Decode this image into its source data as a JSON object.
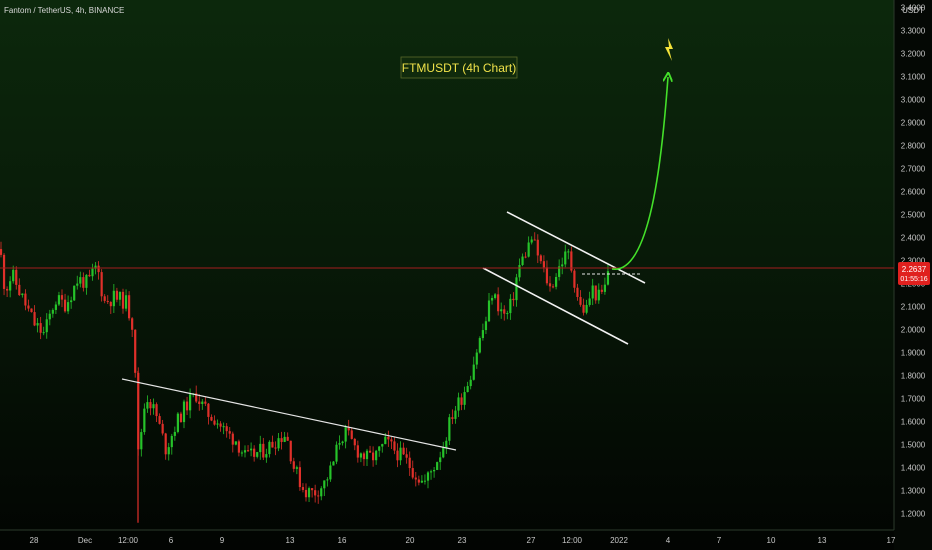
{
  "legend": {
    "text": "Fantom / TetherUS, 4h, BINANCE"
  },
  "chart_data": {
    "type": "candlestick",
    "symbol": "FTMUSDT",
    "annotation": "FTMUSDT (4h Chart)",
    "quote_currency": "USDT",
    "y_ticks": [
      "3.4000",
      "3.3000",
      "3.2000",
      "3.1000",
      "3.0000",
      "2.9000",
      "2.8000",
      "2.7000",
      "2.6000",
      "2.5000",
      "2.4000",
      "2.3000",
      "2.2000",
      "2.1000",
      "2.0000",
      "1.9000",
      "1.8000",
      "1.7000",
      "1.6000",
      "1.5000",
      "1.4000",
      "1.3000",
      "1.2000"
    ],
    "ylim": [
      1.15,
      3.42
    ],
    "x_ticks": [
      "28",
      "Dec",
      "12:00",
      "6",
      "9",
      "13",
      "16",
      "20",
      "23",
      "27",
      "12:00",
      "2022",
      "4",
      "7",
      "10",
      "13",
      "17"
    ],
    "last_price": {
      "label": "2.2637",
      "value": 2.2637,
      "countdown": "01:55:16"
    },
    "colors": {
      "up": "#26c32a",
      "down": "#e0302a",
      "background": "#050a05",
      "trendline": "#e6e6e6",
      "projection": "#44e02a",
      "price_line": "#a31e1e"
    },
    "series_path": [
      [
        0,
        2.35
      ],
      [
        5,
        2.17
      ],
      [
        12,
        2.24
      ],
      [
        22,
        2.14
      ],
      [
        35,
        2.02
      ],
      [
        44,
        1.98
      ],
      [
        55,
        2.13
      ],
      [
        66,
        2.11
      ],
      [
        78,
        2.22
      ],
      [
        88,
        2.2
      ],
      [
        97,
        2.28
      ],
      [
        104,
        2.12
      ],
      [
        114,
        2.14
      ],
      [
        126,
        2.12
      ],
      [
        134,
        2.0
      ],
      [
        138,
        1.45
      ],
      [
        146,
        1.72
      ],
      [
        156,
        1.63
      ],
      [
        166,
        1.48
      ],
      [
        176,
        1.59
      ],
      [
        186,
        1.67
      ],
      [
        196,
        1.72
      ],
      [
        206,
        1.64
      ],
      [
        216,
        1.61
      ],
      [
        226,
        1.55
      ],
      [
        236,
        1.52
      ],
      [
        246,
        1.44
      ],
      [
        256,
        1.46
      ],
      [
        266,
        1.48
      ],
      [
        276,
        1.52
      ],
      [
        286,
        1.55
      ],
      [
        294,
        1.4
      ],
      [
        304,
        1.3
      ],
      [
        314,
        1.29
      ],
      [
        324,
        1.33
      ],
      [
        332,
        1.4
      ],
      [
        340,
        1.53
      ],
      [
        346,
        1.55
      ],
      [
        356,
        1.48
      ],
      [
        366,
        1.44
      ],
      [
        376,
        1.45
      ],
      [
        386,
        1.51
      ],
      [
        396,
        1.47
      ],
      [
        406,
        1.43
      ],
      [
        416,
        1.37
      ],
      [
        424,
        1.33
      ],
      [
        432,
        1.39
      ],
      [
        442,
        1.48
      ],
      [
        452,
        1.63
      ],
      [
        462,
        1.71
      ],
      [
        470,
        1.8
      ],
      [
        478,
        1.93
      ],
      [
        486,
        2.04
      ],
      [
        492,
        2.16
      ],
      [
        500,
        2.09
      ],
      [
        506,
        2.05
      ],
      [
        512,
        2.12
      ],
      [
        518,
        2.26
      ],
      [
        526,
        2.34
      ],
      [
        532,
        2.4
      ],
      [
        538,
        2.32
      ],
      [
        544,
        2.25
      ],
      [
        550,
        2.18
      ],
      [
        556,
        2.24
      ],
      [
        562,
        2.3
      ],
      [
        568,
        2.33
      ],
      [
        574,
        2.22
      ],
      [
        580,
        2.1
      ],
      [
        586,
        2.08
      ],
      [
        592,
        2.18
      ],
      [
        598,
        2.14
      ],
      [
        604,
        2.16
      ],
      [
        608,
        2.26
      ]
    ]
  }
}
